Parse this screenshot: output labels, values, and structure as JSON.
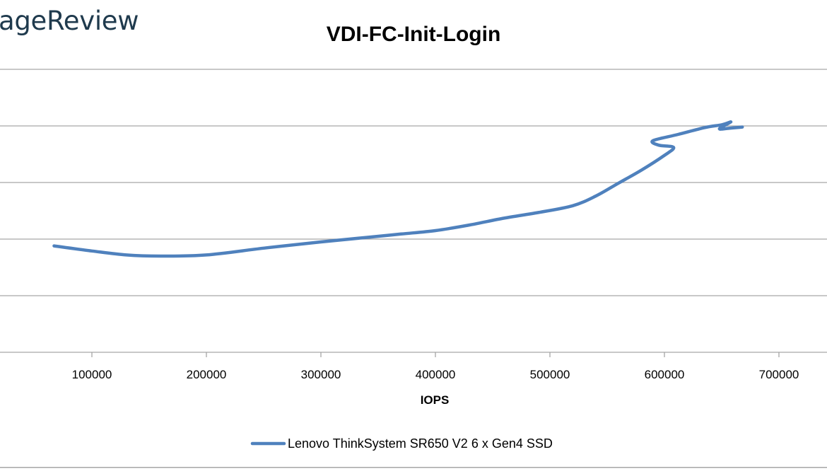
{
  "watermark": "ageReview",
  "chart_data": {
    "type": "line",
    "title": "VDI-FC-Init-Login",
    "xlabel": "IOPS",
    "ylabel": "",
    "x_ticks": [
      "100000",
      "200000",
      "300000",
      "400000",
      "500000",
      "600000",
      "700000"
    ],
    "xlim": [
      20000,
      720000
    ],
    "ylim": [
      0,
      5
    ],
    "y_gridlines": [
      0,
      1,
      2,
      3,
      4,
      5
    ],
    "y_tick_labels_visible": false,
    "grid": true,
    "legend": "bottom",
    "colors": {
      "series": "#4f81bd",
      "grid": "#a6a6a6",
      "text": "#000000"
    },
    "series": [
      {
        "name": "Lenovo ThinkSystem SR650 V2 6 x Gen4 SSD",
        "x": [
          67000,
          100000,
          130000,
          160000,
          200000,
          250000,
          300000,
          340000,
          370000,
          400000,
          430000,
          460000,
          490000,
          520000,
          540000,
          560000,
          580000,
          600000,
          608000,
          595000,
          590000,
          612000,
          635000,
          650000,
          658000,
          648000,
          657000,
          668000
        ],
        "y": [
          1.88,
          1.79,
          1.72,
          1.7,
          1.72,
          1.84,
          1.95,
          2.03,
          2.09,
          2.15,
          2.25,
          2.37,
          2.47,
          2.59,
          2.76,
          2.99,
          3.22,
          3.48,
          3.62,
          3.66,
          3.74,
          3.85,
          3.97,
          4.02,
          4.07,
          3.95,
          3.96,
          3.98
        ]
      }
    ]
  }
}
